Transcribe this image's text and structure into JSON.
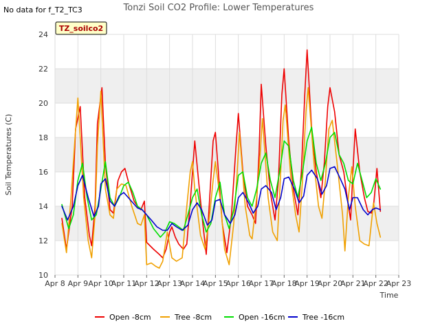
{
  "header": {
    "title": "Tonzi Soil CO2 Profile: Lower Temperatures",
    "no_data": "No data for f_T2_TC3",
    "badge": "TZ_soilco2"
  },
  "chart_data": {
    "type": "line",
    "title": "Tonzi Soil CO2 Profile: Lower Temperatures",
    "xlabel": "Time",
    "ylabel": "Soil Temperatures (C)",
    "xlim": [
      8,
      23
    ],
    "ylim": [
      10,
      24
    ],
    "x_ticks": [
      "Apr 8",
      "Apr 9",
      "Apr 10",
      "Apr 11",
      "Apr 12",
      "Apr 13",
      "Apr 14",
      "Apr 15",
      "Apr 16",
      "Apr 17",
      "Apr 18",
      "Apr 19",
      "Apr 20",
      "Apr 21",
      "Apr 22",
      "Apr 23"
    ],
    "y_ticks": [
      10,
      12,
      14,
      16,
      18,
      20,
      22,
      24
    ],
    "grid": true,
    "legend_position": "bottom",
    "series": [
      {
        "name": "Open -8cm",
        "color": "#ee0000",
        "x": [
          8.3,
          8.5,
          8.75,
          8.9,
          9.1,
          9.3,
          9.5,
          9.6,
          9.75,
          9.85,
          10.05,
          10.2,
          10.4,
          10.55,
          10.75,
          10.9,
          11.05,
          11.25,
          11.45,
          11.6,
          11.75,
          11.9,
          12.0,
          12.3,
          12.55,
          12.7,
          12.85,
          13.0,
          13.1,
          13.25,
          13.4,
          13.6,
          13.75,
          13.9,
          14.0,
          14.1,
          14.3,
          14.45,
          14.6,
          14.75,
          14.9,
          15.0,
          15.1,
          15.3,
          15.5,
          15.7,
          15.9,
          16.0,
          16.2,
          16.4,
          16.6,
          16.75,
          16.9,
          17.0,
          17.2,
          17.4,
          17.6,
          17.75,
          17.9,
          18.0,
          18.2,
          18.4,
          18.6,
          18.75,
          18.9,
          19.0,
          19.2,
          19.4,
          19.6,
          19.75,
          19.9,
          20.0,
          20.2,
          20.4,
          20.6,
          20.75,
          20.9,
          21.0,
          21.1,
          21.3,
          21.5,
          21.65,
          21.8,
          21.9,
          22.05,
          22.2
        ],
        "y": [
          13.3,
          11.5,
          14.0,
          18.5,
          19.8,
          14.5,
          12.3,
          11.7,
          14.0,
          18.8,
          20.9,
          16.5,
          13.8,
          13.6,
          15.5,
          16.0,
          16.2,
          15.2,
          14.3,
          14.0,
          13.8,
          14.3,
          11.9,
          11.5,
          11.2,
          11.0,
          11.5,
          12.5,
          12.8,
          12.2,
          11.8,
          11.5,
          11.8,
          14.2,
          16.0,
          17.8,
          15.0,
          13.0,
          11.2,
          14.5,
          17.8,
          18.3,
          16.5,
          13.0,
          11.3,
          13.5,
          17.5,
          19.4,
          16.0,
          14.0,
          13.5,
          13.0,
          17.0,
          21.1,
          17.5,
          14.8,
          13.2,
          15.5,
          20.5,
          22.0,
          17.8,
          15.0,
          13.5,
          16.0,
          20.5,
          23.1,
          18.5,
          16.0,
          14.5,
          16.5,
          19.8,
          20.9,
          19.5,
          17.0,
          16.0,
          14.5,
          13.2,
          16.0,
          18.5,
          16.0,
          14.5,
          13.7,
          13.6,
          14.0,
          16.2,
          13.7
        ]
      },
      {
        "name": "Tree -8cm",
        "color": "#f0a000",
        "x": [
          8.3,
          8.5,
          8.7,
          8.85,
          9.0,
          9.25,
          9.45,
          9.6,
          9.75,
          9.85,
          10.0,
          10.2,
          10.4,
          10.55,
          10.7,
          10.9,
          11.1,
          11.35,
          11.6,
          11.75,
          11.9,
          12.0,
          12.2,
          12.4,
          12.55,
          12.7,
          12.9,
          13.1,
          13.3,
          13.55,
          13.75,
          13.9,
          14.0,
          14.1,
          14.35,
          14.55,
          14.75,
          14.9,
          15.0,
          15.2,
          15.4,
          15.6,
          15.8,
          15.95,
          16.05,
          16.3,
          16.5,
          16.6,
          16.8,
          16.95,
          17.05,
          17.3,
          17.5,
          17.7,
          17.85,
          17.95,
          18.05,
          18.3,
          18.5,
          18.65,
          18.8,
          18.95,
          19.05,
          19.3,
          19.5,
          19.65,
          19.8,
          19.95,
          20.1,
          20.35,
          20.55,
          20.65,
          20.8,
          20.95,
          21.1,
          21.3,
          21.5,
          21.7,
          21.9,
          22.05,
          22.2
        ],
        "y": [
          13.0,
          11.3,
          14.5,
          17.5,
          20.3,
          14.5,
          12.0,
          11.0,
          13.5,
          17.5,
          20.7,
          15.0,
          13.5,
          13.3,
          15.0,
          15.3,
          15.2,
          14.0,
          13.0,
          12.9,
          13.5,
          10.6,
          10.7,
          10.5,
          10.4,
          10.8,
          12.5,
          11.0,
          10.8,
          11.0,
          14.0,
          16.0,
          16.6,
          15.0,
          12.3,
          11.5,
          13.5,
          15.5,
          16.6,
          14.5,
          11.5,
          10.6,
          13.0,
          16.0,
          18.3,
          14.0,
          12.3,
          12.1,
          14.5,
          17.0,
          19.1,
          14.5,
          12.5,
          12.0,
          16.0,
          19.0,
          19.9,
          15.5,
          13.5,
          12.5,
          15.5,
          19.5,
          20.9,
          16.5,
          14.0,
          13.3,
          15.5,
          18.5,
          19.0,
          16.0,
          13.5,
          11.4,
          14.5,
          16.3,
          14.0,
          12.0,
          11.8,
          11.7,
          14.2,
          13.0,
          12.2
        ]
      },
      {
        "name": "Open -16cm",
        "color": "#00dd00",
        "x": [
          8.3,
          8.6,
          8.8,
          9.0,
          9.2,
          9.4,
          9.6,
          9.8,
          10.0,
          10.2,
          10.4,
          10.6,
          10.8,
          11.0,
          11.2,
          11.4,
          11.6,
          11.8,
          12.0,
          12.3,
          12.6,
          12.8,
          13.0,
          13.2,
          13.4,
          13.6,
          13.8,
          14.0,
          14.2,
          14.4,
          14.6,
          14.8,
          15.0,
          15.2,
          15.4,
          15.6,
          15.8,
          16.0,
          16.2,
          16.4,
          16.6,
          16.8,
          17.0,
          17.2,
          17.4,
          17.6,
          17.8,
          18.0,
          18.2,
          18.4,
          18.6,
          18.8,
          19.0,
          19.2,
          19.4,
          19.6,
          19.8,
          20.0,
          20.2,
          20.4,
          20.6,
          20.8,
          21.0,
          21.2,
          21.4,
          21.6,
          21.8,
          22.0,
          22.2
        ],
        "y": [
          14.1,
          12.7,
          13.5,
          15.5,
          16.5,
          14.5,
          13.2,
          13.5,
          15.0,
          16.6,
          14.5,
          14.0,
          14.5,
          15.2,
          15.4,
          14.8,
          14.0,
          13.8,
          13.5,
          12.7,
          12.2,
          12.5,
          13.1,
          13.0,
          12.8,
          12.6,
          13.5,
          14.5,
          15.0,
          13.5,
          12.5,
          13.0,
          14.5,
          15.4,
          13.5,
          12.7,
          13.8,
          15.8,
          16.0,
          14.5,
          14.0,
          15.0,
          16.5,
          17.1,
          15.5,
          14.5,
          16.0,
          17.8,
          17.5,
          15.5,
          14.5,
          16.0,
          17.8,
          18.6,
          16.5,
          15.5,
          16.5,
          18.0,
          18.3,
          17.0,
          16.5,
          15.5,
          15.3,
          16.5,
          15.5,
          14.5,
          14.8,
          15.6,
          15.0
        ]
      },
      {
        "name": "Tree -16cm",
        "color": "#0000cc",
        "x": [
          8.3,
          8.55,
          8.8,
          9.0,
          9.2,
          9.45,
          9.7,
          9.9,
          10.0,
          10.2,
          10.4,
          10.6,
          10.8,
          11.0,
          11.2,
          11.4,
          11.6,
          11.8,
          12.0,
          12.2,
          12.45,
          12.7,
          12.9,
          13.1,
          13.3,
          13.55,
          13.8,
          14.0,
          14.2,
          14.4,
          14.65,
          14.85,
          15.0,
          15.2,
          15.4,
          15.65,
          15.85,
          16.0,
          16.2,
          16.45,
          16.65,
          16.85,
          17.0,
          17.2,
          17.45,
          17.65,
          17.85,
          18.0,
          18.2,
          18.45,
          18.65,
          18.85,
          19.0,
          19.2,
          19.45,
          19.65,
          19.85,
          20.0,
          20.2,
          20.45,
          20.65,
          20.85,
          21.0,
          21.2,
          21.45,
          21.65,
          21.85,
          22.0,
          22.2
        ],
        "y": [
          14.0,
          13.2,
          14.0,
          15.2,
          15.8,
          14.5,
          13.4,
          14.0,
          15.3,
          15.6,
          14.3,
          14.0,
          14.6,
          14.8,
          14.5,
          14.2,
          13.9,
          13.8,
          13.5,
          13.2,
          12.8,
          12.6,
          12.6,
          13.0,
          12.8,
          12.6,
          12.9,
          13.8,
          14.2,
          13.8,
          12.9,
          13.2,
          14.3,
          14.4,
          13.5,
          13.0,
          13.5,
          14.5,
          14.8,
          14.2,
          13.6,
          14.0,
          15.0,
          15.2,
          14.8,
          13.8,
          14.5,
          15.6,
          15.7,
          15.0,
          14.2,
          14.6,
          15.8,
          16.1,
          15.6,
          14.7,
          15.2,
          16.2,
          16.3,
          15.6,
          15.0,
          13.8,
          14.5,
          14.5,
          13.8,
          13.5,
          13.8,
          13.9,
          13.8
        ]
      }
    ]
  }
}
